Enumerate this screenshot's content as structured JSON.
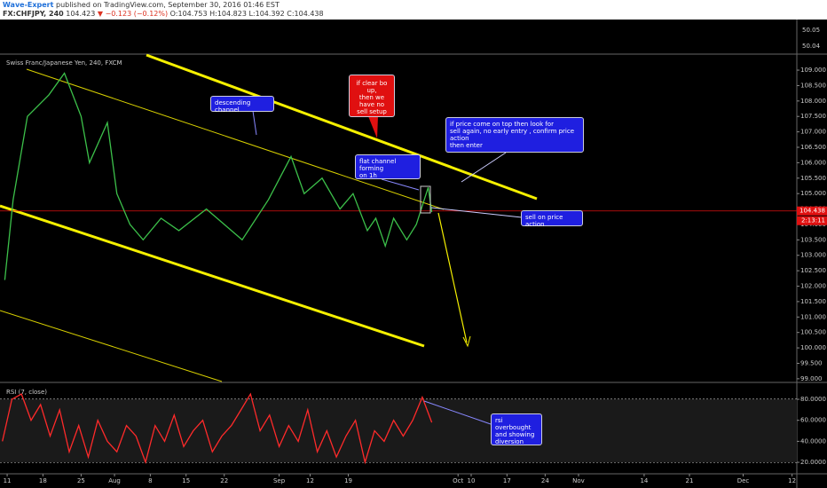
{
  "header": {
    "author": "Wave-Expert",
    "published": "published on TradingView.com, September 30, 2016 01:46 EST",
    "symbol": "FX:CHFJPY, 240",
    "price": "104.423",
    "change": "▼ −0.123 (−0.12%)",
    "ohlc": "O:104.753 H:104.823 L:104.392 C:104.438"
  },
  "top_pane_labels": [
    "50.05",
    "50.04"
  ],
  "annotations": {
    "descending": "descending channel",
    "no_sell": [
      "if clear bo up,",
      "then we have no",
      "sell setup"
    ],
    "flat": [
      "flat channel forming",
      "on 1h"
    ],
    "on_top": [
      "if price come on top then look for",
      "sell again, no early entry , confirm price action",
      "then enter"
    ],
    "sell": "sell on price action",
    "rsi": [
      "rsi overbought",
      "and showing",
      "diversion"
    ]
  },
  "chart_data": [
    {
      "type": "line",
      "title": "Swiss Franc/Japanese Yen, 240, FXCM",
      "x": [
        -2,
        5,
        17,
        35,
        48,
        62,
        69,
        84,
        92,
        103,
        114,
        129,
        144,
        167,
        197,
        219,
        238,
        249,
        264,
        279,
        290,
        302,
        309,
        317,
        324,
        335,
        343,
        353,
        356
      ],
      "values": [
        102.2,
        104.8,
        107.5,
        108.2,
        108.9,
        107.5,
        106,
        107.3,
        105,
        104,
        103.5,
        104.2,
        103.8,
        104.5,
        103.5,
        104.8,
        106.2,
        105,
        105.5,
        104.5,
        105,
        103.8,
        104.2,
        103.3,
        104.2,
        103.5,
        104,
        105.2,
        104.4
      ],
      "color": "#3cc04a",
      "xlim": [
        -6,
        662
      ],
      "ylim": [
        98.91,
        109.49
      ],
      "yticks": [
        {
          "value": 99,
          "label": "99.000"
        },
        {
          "value": 99.5,
          "label": "99.500"
        },
        {
          "value": 100,
          "label": "100.000"
        },
        {
          "value": 100.5,
          "label": "100.500"
        },
        {
          "value": 101,
          "label": "101.000"
        },
        {
          "value": 101.5,
          "label": "101.500"
        },
        {
          "value": 102,
          "label": "102.000"
        },
        {
          "value": 102.5,
          "label": "102.500"
        },
        {
          "value": 103,
          "label": "103.000"
        },
        {
          "value": 103.5,
          "label": "103.500"
        },
        {
          "value": 104,
          "label": "104.000"
        },
        {
          "value": 104.5,
          "label": "104.500"
        },
        {
          "value": 105,
          "label": "105.000"
        },
        {
          "value": 105.5,
          "label": "105.500"
        },
        {
          "value": 106,
          "label": "106.000"
        },
        {
          "value": 106.5,
          "label": "106.500"
        },
        {
          "value": 107,
          "label": "107.000"
        },
        {
          "value": 107.5,
          "label": "107.500"
        },
        {
          "value": 108,
          "label": "108.000"
        },
        {
          "value": 108.5,
          "label": "108.500"
        },
        {
          "value": 109,
          "label": "109.000"
        }
      ],
      "last": {
        "value": 104.438,
        "label": "104.438"
      },
      "countdown": "2:13:11",
      "last_color": "#e01010"
    },
    {
      "type": "line",
      "title": "RSI (7, close)",
      "x": [
        -4,
        4,
        12,
        20,
        28,
        36,
        44,
        52,
        60,
        68,
        76,
        84,
        92,
        100,
        108,
        116,
        124,
        132,
        140,
        148,
        156,
        164,
        172,
        180,
        188,
        196,
        204,
        212,
        220,
        228,
        236,
        244,
        252,
        260,
        268,
        276,
        284,
        292,
        300,
        308,
        316,
        324,
        332,
        340,
        348,
        356
      ],
      "values": [
        40,
        80,
        85,
        60,
        75,
        45,
        70,
        30,
        55,
        25,
        60,
        40,
        30,
        55,
        45,
        20,
        55,
        40,
        65,
        35,
        50,
        60,
        30,
        45,
        55,
        70,
        85,
        50,
        65,
        35,
        55,
        40,
        70,
        30,
        50,
        25,
        45,
        60,
        20,
        50,
        40,
        60,
        45,
        60,
        82,
        58
      ],
      "color": "#ff2a2a",
      "xlim": [
        -6,
        662
      ],
      "ylim": [
        9.9,
        94.4
      ],
      "yticks": [
        {
          "value": 20,
          "label": "20.0000"
        },
        {
          "value": 40,
          "label": "40.0000"
        },
        {
          "value": 60,
          "label": "60.0000"
        },
        {
          "value": 80,
          "label": "80.0000"
        }
      ],
      "hlines": [
        80,
        20
      ],
      "xticks": [
        {
          "value": 0,
          "label": "11"
        },
        {
          "value": 30,
          "label": "18"
        },
        {
          "value": 62,
          "label": "25"
        },
        {
          "value": 90,
          "label": "Aug"
        },
        {
          "value": 120,
          "label": "8"
        },
        {
          "value": 150,
          "label": "15"
        },
        {
          "value": 182,
          "label": "22"
        },
        {
          "value": 228,
          "label": "Sep"
        },
        {
          "value": 254,
          "label": "12"
        },
        {
          "value": 286,
          "label": "19"
        },
        {
          "value": 378,
          "label": "Oct"
        },
        {
          "value": 389,
          "label": "10"
        },
        {
          "value": 419,
          "label": "17"
        },
        {
          "value": 451,
          "label": "24"
        },
        {
          "value": 479,
          "label": "Nov"
        },
        {
          "value": 534,
          "label": "14"
        },
        {
          "value": 572,
          "label": "21"
        },
        {
          "value": 617,
          "label": "Dec"
        },
        {
          "value": 658,
          "label": "12"
        }
      ]
    }
  ]
}
